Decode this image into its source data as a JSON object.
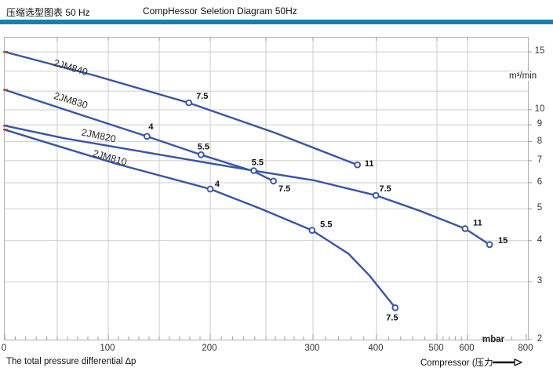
{
  "header": {
    "title_cn": "压缩选型图表 50 Hz",
    "title_en": "CompHessor Seletion Diagram 50Hz"
  },
  "footer": {
    "x_axis_caption_left": "The total pressure differential ∆p",
    "x_axis_caption_right": "Compressor (压力",
    "arrow_icon": "right-arrow"
  },
  "colors": {
    "accent_bar": "#1681AE",
    "curve": "#3A55A2",
    "grid": "#CCCCCC",
    "axis": "#999999",
    "marker_fill": "#FFFFFF",
    "start_tick_red": "#C03A2B",
    "label_text": "#111111"
  },
  "chart_data": {
    "type": "line",
    "title": "CompHessor Seletion Diagram 50Hz",
    "subtitle_cn": "压缩选型图表 50 Hz",
    "xlabel": "The total pressure differential ∆p (mbar)",
    "ylabel": "m³/min",
    "x_axis": {
      "unit": "mbar",
      "scale": "piecewise-nonlinear",
      "tick_labels": [
        0,
        100,
        200,
        300,
        400,
        500,
        600,
        800
      ],
      "gridlines": [
        50,
        100,
        150,
        200,
        250,
        300,
        400,
        500,
        600
      ],
      "anchors": [
        [
          0,
          0.0
        ],
        [
          50,
          0.1004
        ],
        [
          100,
          0.1979
        ],
        [
          150,
          0.2954
        ],
        [
          200,
          0.3928
        ],
        [
          250,
          0.4993
        ],
        [
          300,
          0.5892
        ],
        [
          400,
          0.7106
        ],
        [
          500,
          0.8261
        ],
        [
          600,
          0.8846
        ],
        [
          800,
          0.997
        ]
      ]
    },
    "y_axis": {
      "unit": "m³/min",
      "scale": "log",
      "top_value": 16.57,
      "bottom_value": 2.0,
      "tick_labels": [
        15,
        10,
        9,
        8,
        7,
        6,
        5,
        4,
        3,
        2
      ],
      "minor_gridlines": [
        13.1,
        11.4
      ]
    },
    "series": [
      {
        "name": "2JM840",
        "points": [
          [
            0,
            15.0
          ],
          [
            87,
            12.7
          ],
          [
            179,
            10.5
          ],
          [
            260,
            8.5
          ],
          [
            370,
            6.8
          ]
        ],
        "markers": [
          {
            "x": 179,
            "y": 10.5,
            "label": "7.5",
            "dx": 17,
            "dy": -9
          },
          {
            "x": 370,
            "y": 6.8,
            "label": "11",
            "dx": 15,
            "dy": -2
          }
        ],
        "name_label": {
          "x": 83,
          "y": 42,
          "rot": 16.5
        }
      },
      {
        "name": "2JM830",
        "points": [
          [
            0,
            11.5
          ],
          [
            71,
            9.7
          ],
          [
            138,
            8.3
          ],
          [
            191,
            7.3
          ],
          [
            239,
            6.5
          ],
          [
            258,
            6.07
          ]
        ],
        "markers": [
          {
            "x": 138,
            "y": 8.3,
            "label": "4",
            "dx": 5,
            "dy": -13
          },
          {
            "x": 191,
            "y": 7.3,
            "label": "5.5",
            "dx": 3,
            "dy": -11
          },
          {
            "x": 258,
            "y": 6.07,
            "label": "7.5",
            "dx": 14,
            "dy": 9
          }
        ],
        "name_label": {
          "x": 83,
          "y": 84,
          "rot": 17
        }
      },
      {
        "name": "2JM820",
        "points": [
          [
            0,
            8.95
          ],
          [
            56,
            8.2
          ],
          [
            118,
            7.6
          ],
          [
            179,
            7.05
          ],
          [
            239,
            6.53
          ],
          [
            302,
            6.1
          ],
          [
            399,
            5.49
          ],
          [
            473,
            4.92
          ],
          [
            592,
            4.35
          ],
          [
            675,
            3.89
          ]
        ],
        "markers": [
          {
            "x": 239,
            "y": 6.53,
            "label": "5.5",
            "dx": 5,
            "dy": -11
          },
          {
            "x": 399,
            "y": 5.49,
            "label": "7.5",
            "dx": 12,
            "dy": -9
          },
          {
            "x": 592,
            "y": 4.35,
            "label": "11",
            "dx": 16,
            "dy": -8
          },
          {
            "x": 675,
            "y": 3.89,
            "label": "15",
            "dx": 17,
            "dy": -6
          }
        ],
        "name_label": {
          "x": 119,
          "y": 129,
          "rot": 12
        }
      },
      {
        "name": "2JM810",
        "points": [
          [
            0,
            8.7
          ],
          [
            56,
            7.67
          ],
          [
            110,
            6.82
          ],
          [
            200,
            5.74
          ],
          [
            244,
            5.02
          ],
          [
            299,
            4.3
          ],
          [
            356,
            3.65
          ],
          [
            389,
            3.13
          ],
          [
            431,
            2.5
          ]
        ],
        "markers": [
          {
            "x": 200,
            "y": 5.74,
            "label": "4",
            "dx": 9,
            "dy": -7
          },
          {
            "x": 299,
            "y": 4.3,
            "label": "5.5",
            "dx": 18,
            "dy": -8
          },
          {
            "x": 431,
            "y": 2.5,
            "label": "7.5",
            "dx": -4,
            "dy": 12
          }
        ],
        "name_label": {
          "x": 133,
          "y": 157,
          "rot": 16
        }
      }
    ]
  }
}
